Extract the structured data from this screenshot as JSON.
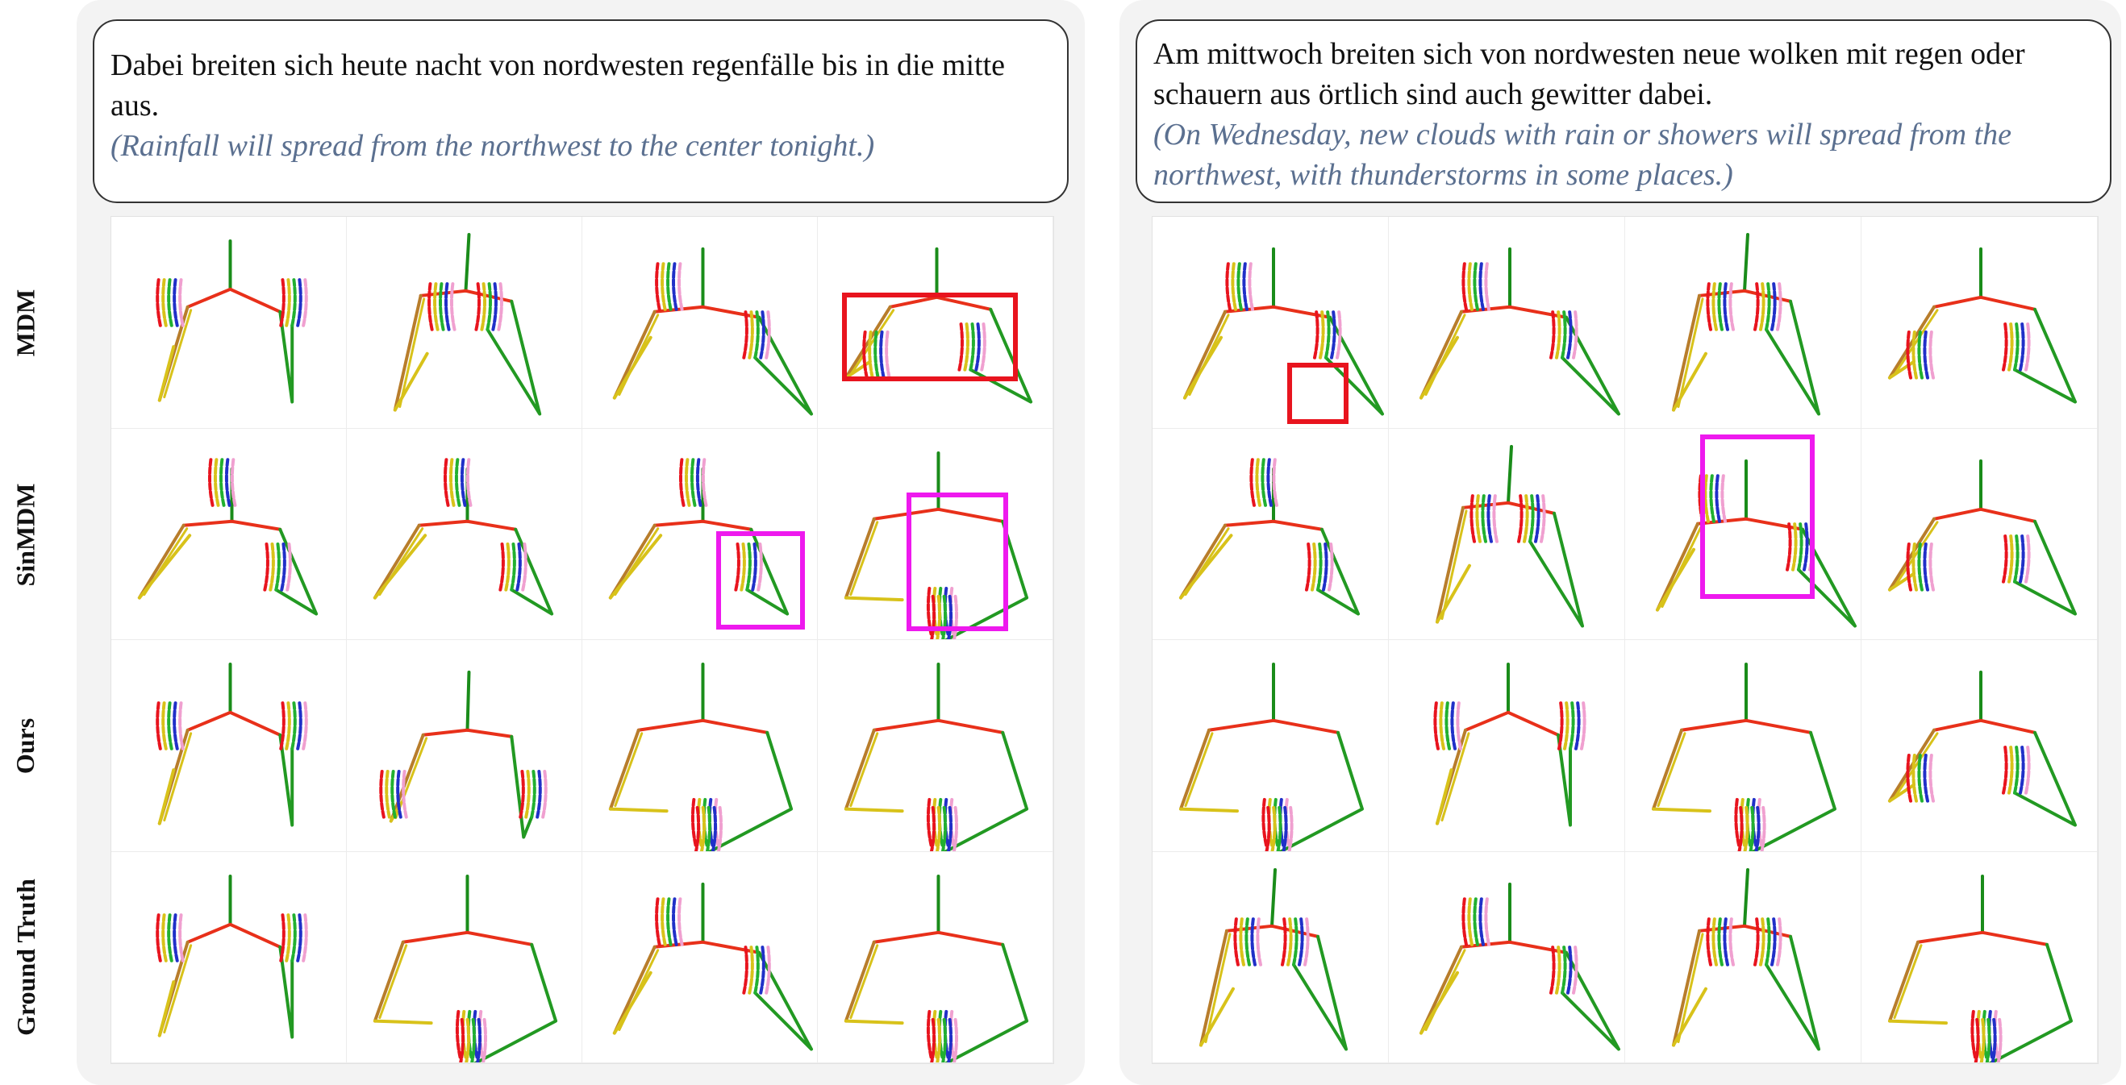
{
  "row_labels": [
    "MDM",
    "SinMDM",
    "Ours",
    "Ground Truth"
  ],
  "panels": [
    {
      "caption_german": "Dabei breiten sich heute nacht von nordwesten regenfälle bis in die mitte aus.",
      "caption_english": "(Rainfall will spread from the northwest to the center tonight.)"
    },
    {
      "caption_german": "Am mittwoch breiten sich von nordwesten neue wolken mit regen oder schauern aus örtlich sind auch gewitter dabei.",
      "caption_english": "(On Wednesday, new clouds with rain or showers will spread from the northwest, with thunderstorms in some places.)"
    }
  ],
  "colors": {
    "red_box": "#e8141e",
    "magenta_box": "#ee19ee",
    "spine": "#1a8c1a",
    "shoulder": "#e8301a",
    "left_arm_upper": "#b87d2b",
    "left_arm_lower": "#d8c21a",
    "right_arm": "#229922",
    "finger_colors": [
      "#e8141e",
      "#d8c21a",
      "#22b030",
      "#2030c8",
      "#f0a0d0"
    ]
  }
}
